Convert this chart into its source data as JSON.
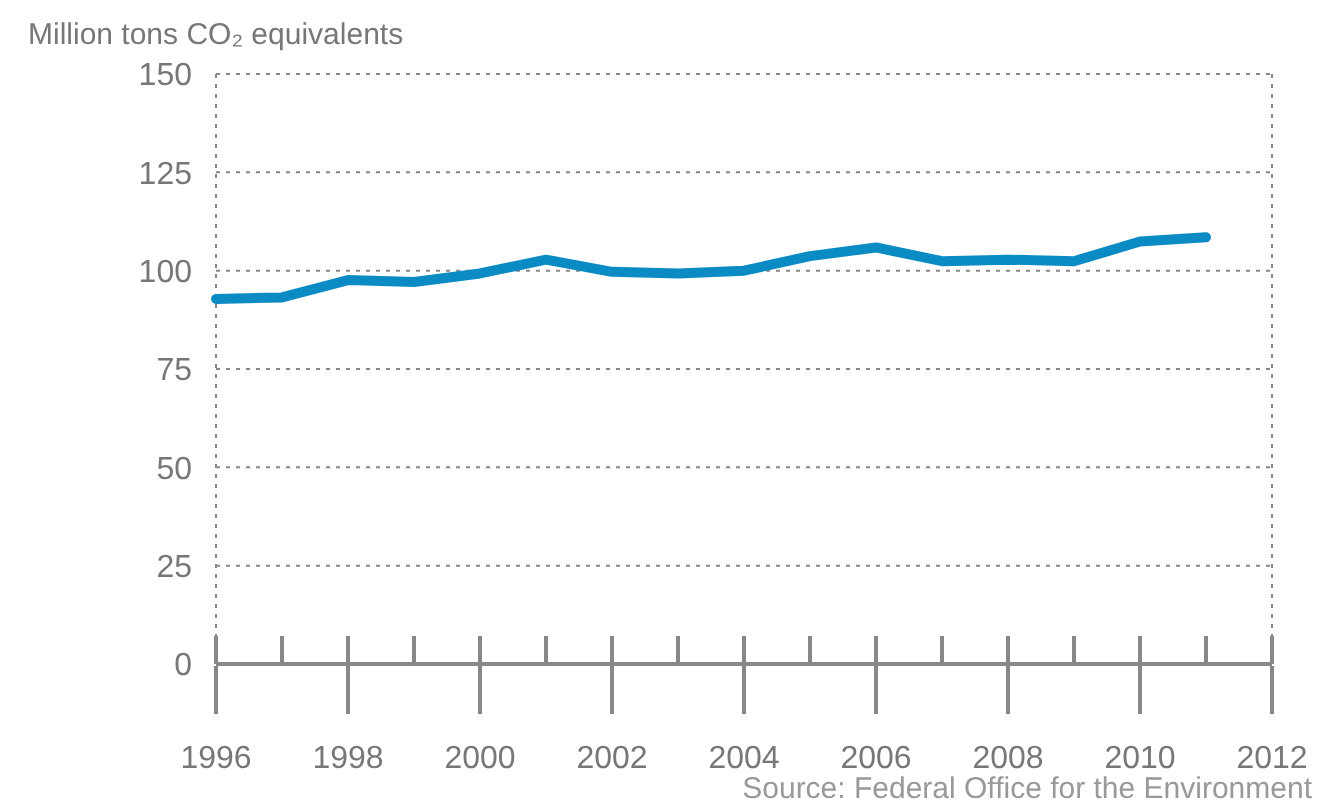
{
  "chart_data": {
    "type": "line",
    "ylabel": "Million tons CO₂ equivalents",
    "x": [
      1996,
      1997,
      1998,
      1999,
      2000,
      2001,
      2002,
      2003,
      2004,
      2005,
      2006,
      2007,
      2008,
      2009,
      2010,
      2011
    ],
    "series": [
      {
        "color": "#0a8bc4",
        "values": [
          92.8,
          93.2,
          97.6,
          97.1,
          99.3,
          102.8,
          99.7,
          99.3,
          100,
          103.7,
          105.9,
          102.4,
          102.8,
          102.4,
          107.4,
          108.5
        ]
      }
    ],
    "xlim": [
      1996,
      2012
    ],
    "xticks": [
      1996,
      {
        "value": 1997,
        "label": null
      },
      1998,
      {
        "value": 1999,
        "label": null
      },
      2000,
      {
        "value": 2001,
        "label": null
      },
      2002,
      {
        "value": 2003,
        "label": null
      },
      2004,
      {
        "value": 2005,
        "label": null
      },
      2006,
      {
        "value": 2007,
        "label": null
      },
      2008,
      {
        "value": 2009,
        "label": null
      },
      2010,
      {
        "value": 2011,
        "label": null
      },
      2012
    ],
    "ylim": [
      0,
      150
    ],
    "yticks": [
      0,
      25,
      50,
      75,
      100,
      125,
      150
    ],
    "grid": true,
    "marker": "none",
    "line_style": "solid",
    "annotations": [
      "Source: Federal Office for the Environment"
    ]
  }
}
